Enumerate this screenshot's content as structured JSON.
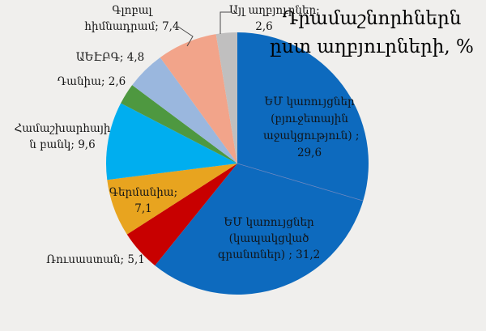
{
  "title": {
    "lines": [
      "Դրամաշնորհներն",
      "ըստ աղբյուրների, %"
    ]
  },
  "chart_data": {
    "type": "pie",
    "title": "Դրամաշնորհներն ըստ աղբյուրների, %",
    "unit": "%",
    "start_angle_deg": 0,
    "direction": "clockwise",
    "legend": "none",
    "background_color": "#f0efed",
    "slices": [
      {
        "label": "ԵՄ կառույցներ (բյուջետային աջակցություն)",
        "value": 29.6,
        "display_value": "29,6",
        "color": "#0d6abe",
        "label_lines": [
          "ԵՄ կառույցներ",
          "(բյուջետային",
          "աջակցություն) ;",
          "29,6"
        ]
      },
      {
        "label": "ԵՄ կառույցներ (կապակցված գրանտներ)",
        "value": 31.2,
        "display_value": "31,2",
        "color": "#0d6abe",
        "label_lines": [
          "ԵՄ կառույցներ",
          "(կապակցված",
          "գրանտներ) ; 31,2"
        ]
      },
      {
        "label": "Ռուսաստան",
        "value": 5.1,
        "display_value": "5,1",
        "color": "#c80000",
        "label_lines": [
          "Ռուսաստան; 5,1"
        ]
      },
      {
        "label": "Գերմանիա",
        "value": 7.1,
        "display_value": "7,1",
        "color": "#e8a41f",
        "label_lines": [
          "Գերմանիա;",
          "7,1"
        ]
      },
      {
        "label": "Համաշխարհային բանկ",
        "value": 9.6,
        "display_value": "9,6",
        "color": "#00aeef",
        "label_lines": [
          "Համաշխարհայի",
          "ն բանկ; 9,6"
        ]
      },
      {
        "label": "Դանիա",
        "value": 2.6,
        "display_value": "2,6",
        "color": "#4e9840",
        "label_lines": [
          "Դանիա; 2,6"
        ]
      },
      {
        "label": "ԱԵԷԲԳ",
        "value": 4.8,
        "display_value": "4,8",
        "color": "#9ab7de",
        "label_lines": [
          "ԱԵԷԲԳ; 4,8"
        ]
      },
      {
        "label": "Գլոբալ հիմնադրամ",
        "value": 7.4,
        "display_value": "7,4",
        "color": "#f2a48a",
        "label_lines": [
          "Գլոբալ",
          "հիմնադրամ; 7,4"
        ]
      },
      {
        "label": "Այլ աղբյուրներ",
        "value": 2.6,
        "display_value": "2,6",
        "color": "#c0bfbf",
        "label_lines": [
          "Այլ աղբյուրներ;",
          "2,6"
        ]
      }
    ]
  }
}
